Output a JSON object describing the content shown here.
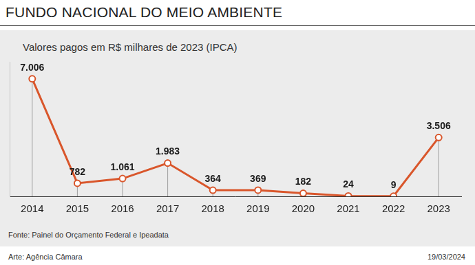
{
  "chart_data": {
    "type": "line",
    "title": "FUNDO NACIONAL DO MEIO AMBIENTE",
    "subtitle": "Valores pagos em R$ milhares de 2023 (IPCA)",
    "source": "Fonte: Painel do Orçamento Federal e Ipeadata",
    "credit": "Arte: Agência Câmara",
    "date": "19/03/2024",
    "categories": [
      "2014",
      "2015",
      "2016",
      "2017",
      "2018",
      "2019",
      "2020",
      "2021",
      "2022",
      "2023"
    ],
    "values": [
      7006,
      782,
      1061,
      1983,
      364,
      369,
      182,
      24,
      9,
      3506
    ],
    "value_labels": [
      "7.006",
      "782",
      "1.061",
      "1.983",
      "364",
      "369",
      "182",
      "24",
      "9",
      "3.506"
    ],
    "color": "#d9562b",
    "marker": "circle",
    "ylim": [
      0,
      8000
    ],
    "tick_labels": "x",
    "grid": false,
    "data_labels": true
  }
}
